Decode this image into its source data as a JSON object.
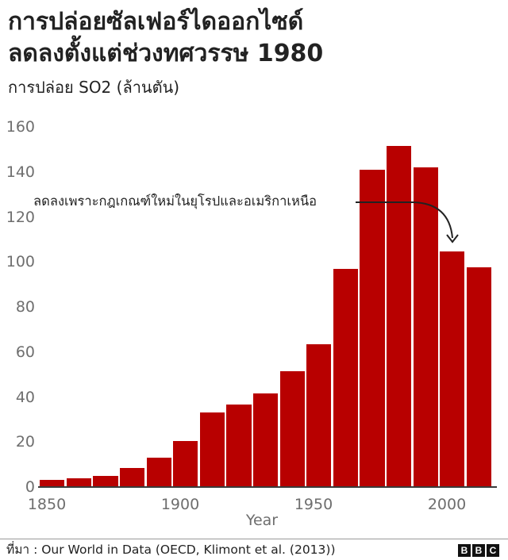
{
  "title_lines": [
    "การปล่อยซัลเฟอร์ไดออกไซด์",
    "ลดลงตั้งแต่ช่วงทศวรรษ 1980"
  ],
  "subtitle": "การปล่อย SO2 (ล้านตัน)",
  "annotation": "ลดลงเพราะกฎเกณฑ์ใหม่ในยุโรปและอเมริกาเหนือ",
  "footer": {
    "source": "ที่มา : Our World in Data (OECD, Klimont et al. (2013))",
    "logo_letters": [
      "B",
      "B",
      "C"
    ]
  },
  "colors": {
    "bar": "#b80000",
    "axis_text": "#6e6e6e",
    "baseline": "#3a3a3a"
  },
  "chart_data": {
    "type": "bar",
    "title": "การปล่อยซัลเฟอร์ไดออกไซด์ลดลงตั้งแต่ช่วงทศวรรษ 1980",
    "subtitle": "การปล่อย SO2 (ล้านตัน)",
    "xlabel": "Year",
    "ylabel": "การปล่อย SO2 (ล้านตัน)",
    "categories": [
      1850,
      1860,
      1870,
      1880,
      1890,
      1900,
      1910,
      1920,
      1930,
      1940,
      1950,
      1960,
      1970,
      1980,
      1990,
      2000,
      2010
    ],
    "values": [
      3,
      4,
      5,
      8.5,
      13,
      20.5,
      33,
      36.5,
      41.5,
      51.5,
      63.5,
      97,
      141,
      151.5,
      142,
      104.5,
      97.5
    ],
    "ylim": [
      0,
      160
    ],
    "yticks": [
      0,
      20,
      40,
      60,
      80,
      100,
      120,
      140,
      160
    ],
    "xticks": [
      1850,
      1900,
      1950,
      2000
    ],
    "grid": false,
    "legend": null,
    "annotations": [
      {
        "text": "ลดลงเพราะกฎเกณฑ์ใหม่ในยุโรปและอเมริกาเหนือ",
        "points_to": 2000
      }
    ]
  }
}
